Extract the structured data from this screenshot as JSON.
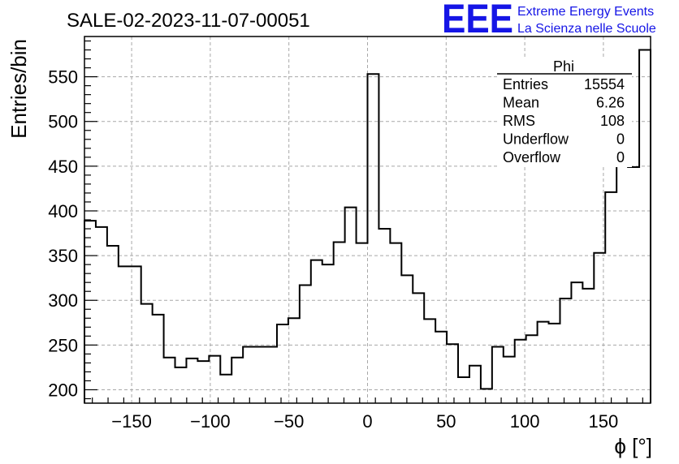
{
  "chart_data": {
    "type": "histogram",
    "title": "SALE-02-2023-11-07-00051",
    "xlabel": "ϕ [°]",
    "ylabel": "Entries/bin",
    "xlim": [
      -180,
      180
    ],
    "ylim": [
      185,
      595
    ],
    "grid": true,
    "bin_width": 7.2,
    "x_ticks": [
      -150,
      -100,
      -50,
      0,
      50,
      100,
      150
    ],
    "y_ticks": [
      200,
      250,
      300,
      350,
      400,
      450,
      500,
      550
    ],
    "values": [
      389,
      382,
      361,
      338,
      338,
      296,
      284,
      236,
      225,
      235,
      232,
      238,
      217,
      236,
      248,
      248,
      248,
      273,
      280,
      317,
      345,
      340,
      365,
      404,
      364,
      553,
      380,
      364,
      328,
      308,
      279,
      265,
      251,
      214,
      227,
      201,
      248,
      237,
      256,
      261,
      276,
      274,
      302,
      320,
      313,
      353,
      421,
      456,
      449,
      580
    ],
    "stats": {
      "name": "Phi",
      "rows": [
        {
          "label": "Entries",
          "value": "15554"
        },
        {
          "label": "Mean",
          "value": "6.26"
        },
        {
          "label": "RMS",
          "value": "108"
        },
        {
          "label": "Underflow",
          "value": "0"
        },
        {
          "label": "Overflow",
          "value": "0"
        }
      ]
    }
  },
  "logo": {
    "mark": "EEE",
    "line1": "Extreme Energy Events",
    "line2": "La Scienza nelle Scuole",
    "color": "#1515e6"
  }
}
